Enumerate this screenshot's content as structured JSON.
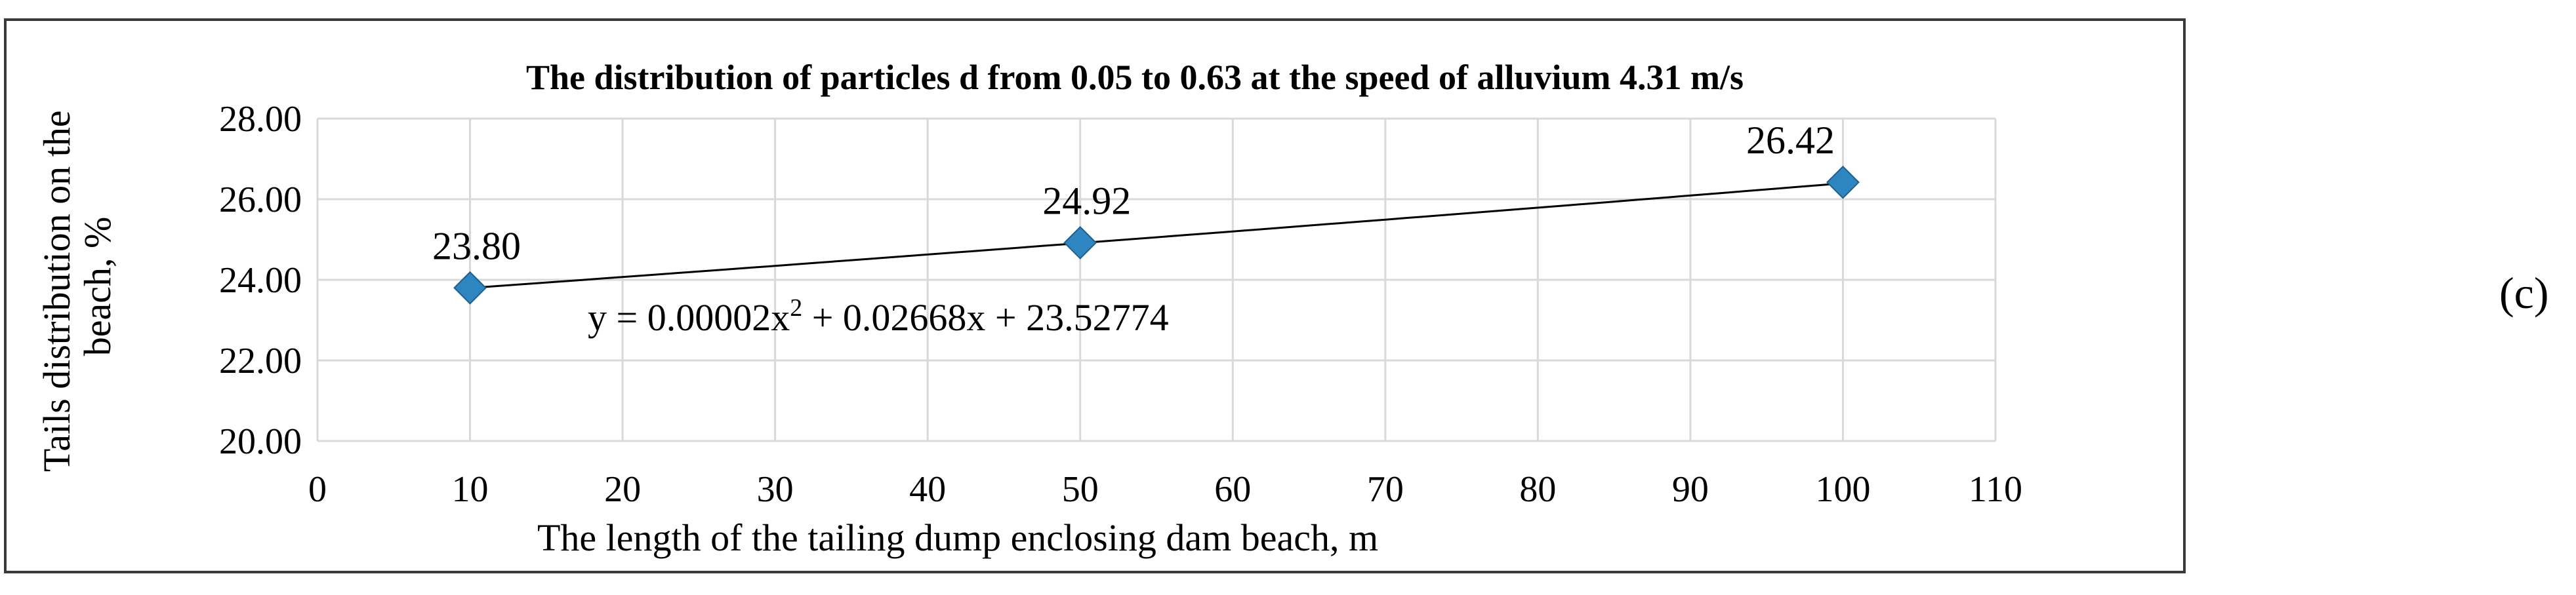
{
  "chart_data": {
    "type": "scatter",
    "title": "The distribution of particles d from 0.05 to 0.63 at the speed of alluvium 4.31 m/s",
    "xlabel": "The length of the tailing dump enclosing dam beach, m",
    "ylabel_line1": "Tails distribution on the",
    "ylabel_line2": "beach, %",
    "xlim": [
      0,
      110
    ],
    "ylim": [
      20,
      28
    ],
    "x_ticks": [
      "0",
      "10",
      "20",
      "30",
      "40",
      "50",
      "60",
      "70",
      "80",
      "90",
      "100",
      "110"
    ],
    "y_ticks": [
      "20.00",
      "22.00",
      "24.00",
      "26.00",
      "28.00"
    ],
    "grid": true,
    "series": [
      {
        "x": [
          10,
          50,
          100
        ],
        "y": [
          23.8,
          24.92,
          26.42
        ],
        "labels": [
          "23.80",
          "24.92",
          "26.42"
        ],
        "color": "#2e86c1",
        "marker": "diamond"
      }
    ],
    "trendline": {
      "coefficients": [
        2e-05,
        0.02668,
        23.52774
      ],
      "equation_lhs": "y = 0.00002x",
      "equation_sup": "2",
      "equation_rhs": " + 0.02668x + 23.52774",
      "color": "#000000"
    }
  },
  "panel_label": "(c)"
}
